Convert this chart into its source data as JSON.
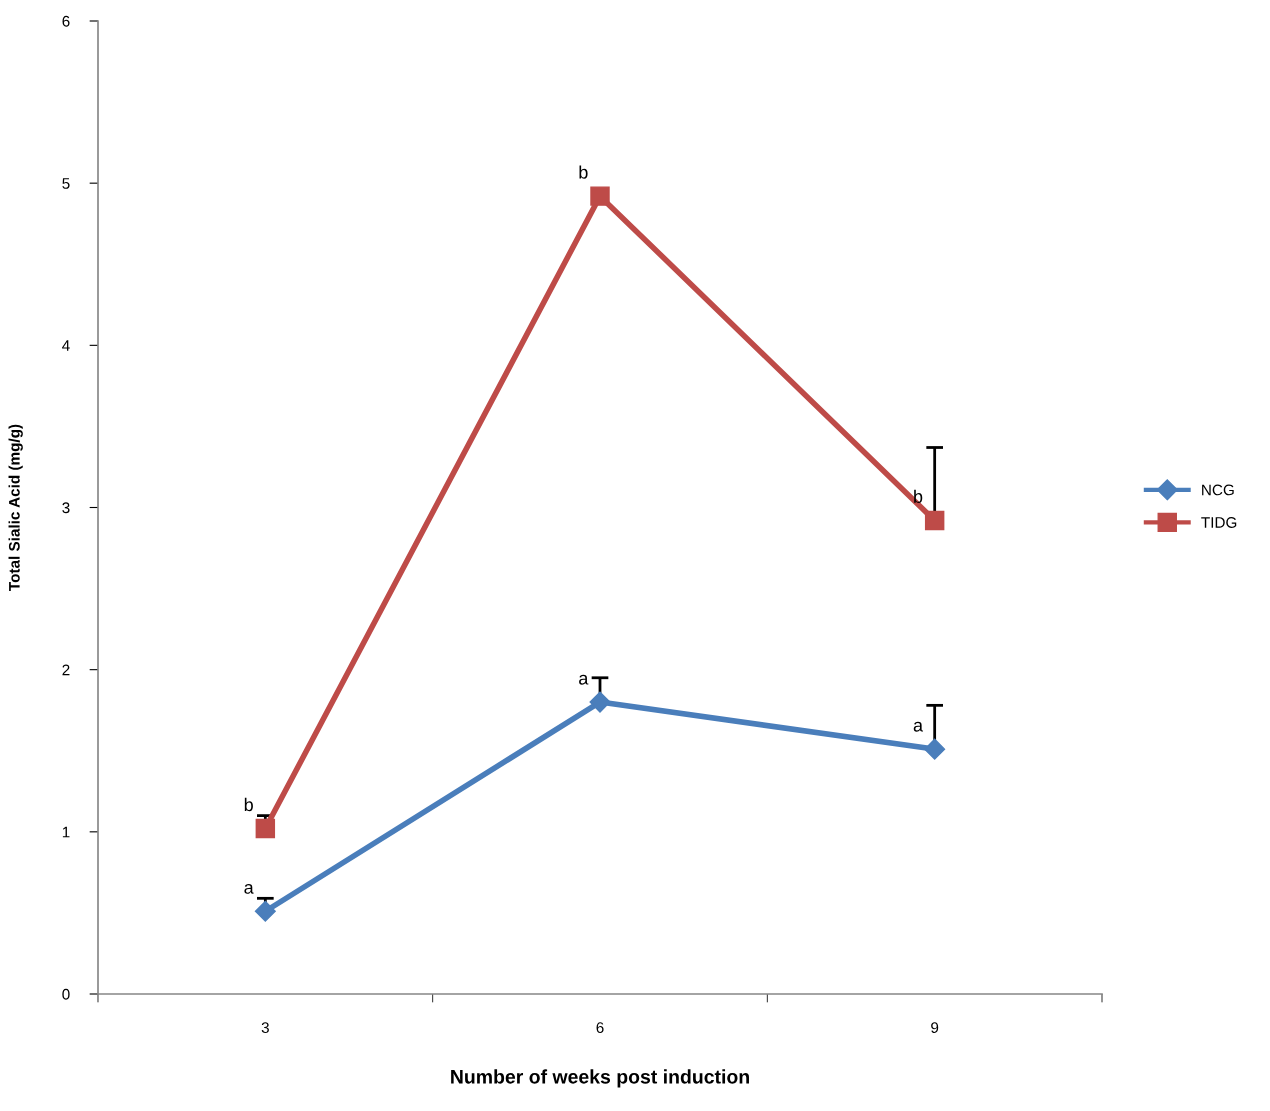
{
  "chart_data": {
    "type": "line",
    "xlabel": "Number of weeks post induction",
    "ylabel": "Total Sialic Acid (mg/g)",
    "categories": [
      "3",
      "6",
      "9"
    ],
    "series": [
      {
        "name": "NCG",
        "color": "#4a7ebb",
        "marker": "diamond",
        "values": [
          0.51,
          1.8,
          1.51
        ],
        "errors": [
          [
            0.51,
            0.59
          ],
          [
            1.8,
            1.95
          ],
          [
            1.51,
            1.78
          ]
        ]
      },
      {
        "name": "TIDG",
        "color": "#be4b48",
        "marker": "square",
        "values": [
          1.02,
          4.92,
          2.92
        ],
        "errors": [
          [
            1.02,
            1.1
          ],
          null,
          [
            2.92,
            3.37
          ]
        ]
      }
    ],
    "ylim": [
      0,
      6
    ],
    "yticks": [
      0,
      1,
      2,
      3,
      4,
      5,
      6
    ],
    "grid": false,
    "legend": "right",
    "line_style": "solid",
    "annotations": [
      {
        "text": "a",
        "x": "3",
        "y": 0.51
      },
      {
        "text": "a",
        "x": "6",
        "y": 1.8
      },
      {
        "text": "a",
        "x": "9",
        "y": 1.51
      },
      {
        "text": "b",
        "x": "3",
        "y": 1.02
      },
      {
        "text": "b",
        "x": "6",
        "y": 4.92
      },
      {
        "text": "b",
        "x": "9",
        "y": 2.92
      }
    ]
  }
}
